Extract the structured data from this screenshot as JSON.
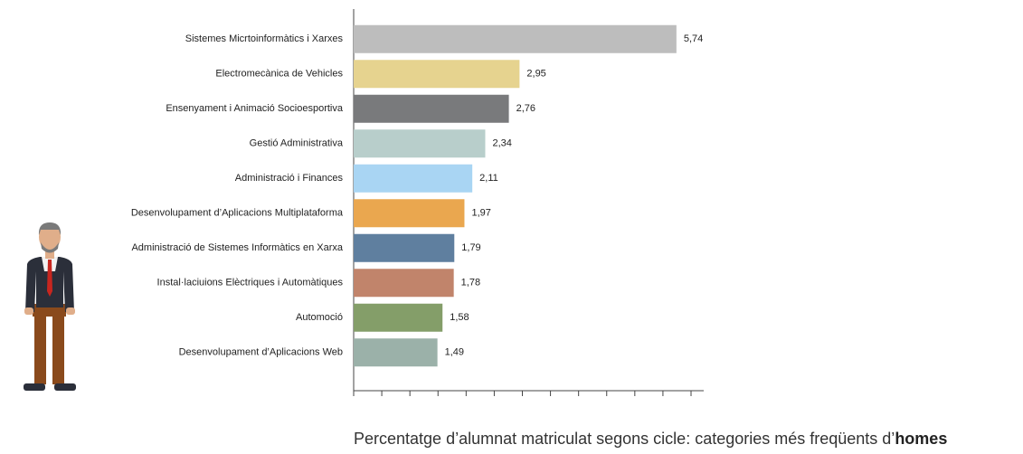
{
  "chart_data": {
    "type": "bar",
    "orientation": "horizontal",
    "title": "Percentatge d’alumnat matriculat segons cicle: categories més freqüents d’",
    "title_emphasis": "homes",
    "categories": [
      "Sistemes Micrtoinformàtics i Xarxes",
      "Electromecànica de Vehicles",
      "Ensenyament i Animació Socioesportiva",
      "Gestió Administrativa",
      "Administració i Finances",
      "Desenvolupament d’Aplicacions Multiplataforma",
      "Administració de Sistemes Informàtics en Xarxa",
      "Instal·laciuions Elèctriques i Automàtiques",
      "Automoció",
      "Desenvolupament d’Aplicacions Web"
    ],
    "values": [
      5.74,
      2.95,
      2.76,
      2.34,
      2.11,
      1.97,
      1.79,
      1.78,
      1.58,
      1.49
    ],
    "value_labels": [
      "5,74",
      "2,95",
      "2,76",
      "2,34",
      "2,11",
      "1,97",
      "1,79",
      "1,78",
      "1,58",
      "1,49"
    ],
    "colors": [
      "#bdbdbd",
      "#e6d38f",
      "#797a7c",
      "#b8cecb",
      "#a9d5f3",
      "#eaa74f",
      "#5f7f9f",
      "#c1846b",
      "#849e69",
      "#9bb1a9"
    ],
    "xlim": [
      0,
      6
    ],
    "xticks": [
      0,
      0.5,
      1,
      1.5,
      2,
      2.5,
      3,
      3.5,
      4,
      4.5,
      5,
      5.5,
      6
    ]
  }
}
